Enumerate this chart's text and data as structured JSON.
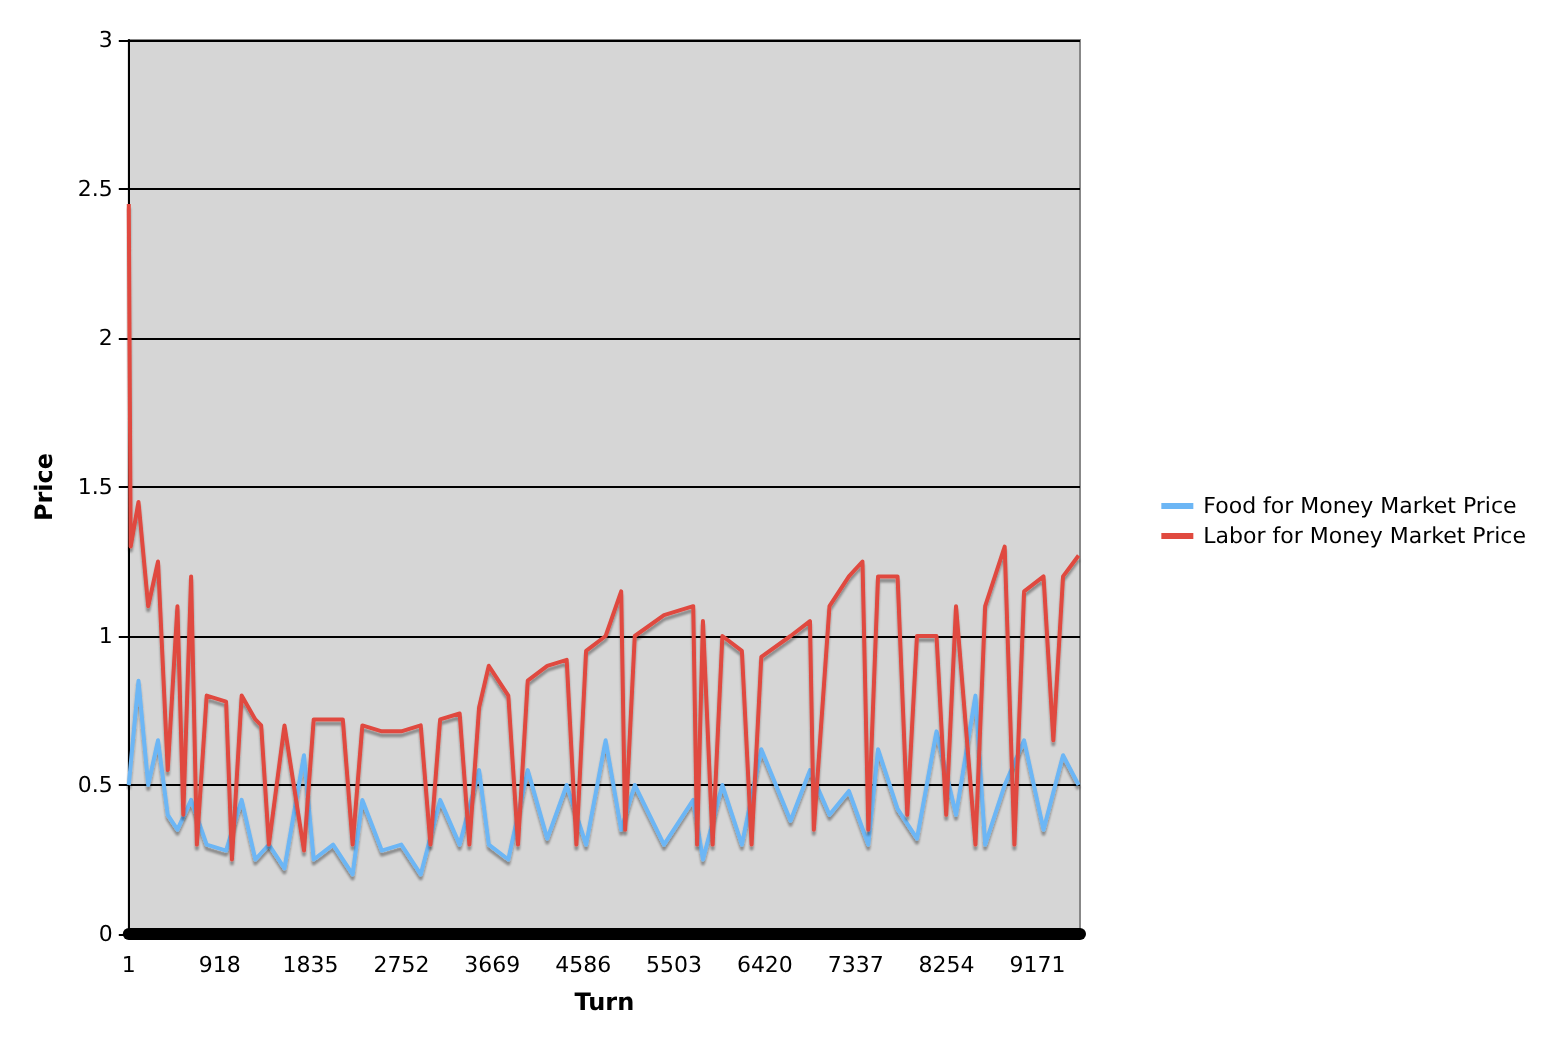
{
  "chart_data": {
    "type": "line",
    "xlabel": "Turn",
    "ylabel": "Price",
    "xlim": [
      1,
      9600
    ],
    "xticks": [
      1,
      918,
      1835,
      2752,
      3669,
      4586,
      5503,
      6420,
      7337,
      8254,
      9171
    ],
    "ylim": [
      0,
      3
    ],
    "yticks": [
      0,
      0.5,
      1,
      1.5,
      2,
      2.5,
      3
    ],
    "grid": "y",
    "legend": "right",
    "marker": "none",
    "line_style": "solid",
    "series": [
      {
        "name": "Food for Money Market Price",
        "color": "#6cb6f5",
        "x": [
          1,
          99,
          197,
          296,
          394,
          492,
          630,
          787,
          983,
          1140,
          1278,
          1415,
          1572,
          1769,
          1867,
          2063,
          2260,
          2358,
          2554,
          2751,
          2947,
          3143,
          3340,
          3536,
          3634,
          3831,
          4027,
          4224,
          4420,
          4616,
          4813,
          4970,
          5107,
          5402,
          5697,
          5795,
          5991,
          6188,
          6384,
          6679,
          6875,
          7072,
          7268,
          7464,
          7562,
          7759,
          7955,
          8152,
          8349,
          8545,
          8643,
          8840,
          9036,
          9232,
          9429,
          9586
        ],
        "values": [
          0.5,
          0.85,
          0.5,
          0.65,
          0.4,
          0.35,
          0.45,
          0.3,
          0.28,
          0.45,
          0.25,
          0.3,
          0.22,
          0.6,
          0.25,
          0.3,
          0.2,
          0.45,
          0.28,
          0.3,
          0.2,
          0.45,
          0.3,
          0.55,
          0.3,
          0.25,
          0.55,
          0.32,
          0.5,
          0.3,
          0.65,
          0.35,
          0.5,
          0.3,
          0.45,
          0.25,
          0.5,
          0.3,
          0.62,
          0.38,
          0.55,
          0.4,
          0.48,
          0.3,
          0.62,
          0.42,
          0.32,
          0.68,
          0.4,
          0.8,
          0.3,
          0.5,
          0.65,
          0.35,
          0.6,
          0.5
        ]
      },
      {
        "name": "Labor for Money Market Price",
        "color": "#e04a3f",
        "x": [
          1,
          20,
          99,
          197,
          296,
          394,
          492,
          551,
          630,
          688,
          787,
          983,
          1042,
          1140,
          1278,
          1337,
          1415,
          1572,
          1769,
          1867,
          2063,
          2161,
          2260,
          2358,
          2554,
          2751,
          2947,
          3045,
          3143,
          3340,
          3438,
          3536,
          3634,
          3831,
          3929,
          4027,
          4224,
          4420,
          4518,
          4616,
          4813,
          4970,
          5010,
          5107,
          5402,
          5697,
          5736,
          5795,
          5893,
          5991,
          6188,
          6286,
          6384,
          6679,
          6875,
          6914,
          7072,
          7268,
          7405,
          7464,
          7562,
          7759,
          7857,
          7955,
          8152,
          8250,
          8349,
          8545,
          8643,
          8840,
          8938,
          9036,
          9232,
          9331,
          9429,
          9586
        ],
        "values": [
          2.45,
          1.3,
          1.45,
          1.1,
          1.25,
          0.55,
          1.1,
          0.4,
          1.2,
          0.3,
          0.8,
          0.78,
          0.25,
          0.8,
          0.72,
          0.7,
          0.3,
          0.7,
          0.28,
          0.72,
          0.72,
          0.72,
          0.3,
          0.7,
          0.68,
          0.68,
          0.7,
          0.3,
          0.72,
          0.74,
          0.3,
          0.76,
          0.9,
          0.8,
          0.3,
          0.85,
          0.9,
          0.92,
          0.3,
          0.95,
          1.0,
          1.15,
          0.35,
          1.0,
          1.07,
          1.1,
          0.3,
          1.05,
          0.3,
          1.0,
          0.95,
          0.3,
          0.93,
          1.0,
          1.05,
          0.35,
          1.1,
          1.2,
          1.25,
          0.35,
          1.2,
          1.2,
          0.4,
          1.0,
          1.0,
          0.4,
          1.1,
          0.3,
          1.1,
          1.3,
          0.3,
          1.15,
          1.2,
          0.65,
          1.2,
          1.27
        ]
      }
    ]
  }
}
